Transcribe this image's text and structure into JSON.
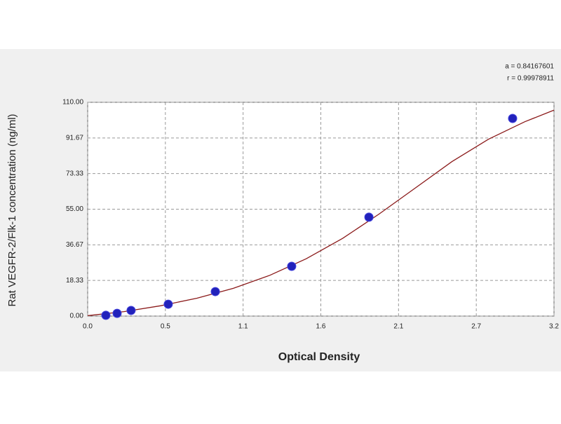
{
  "chart_data": {
    "type": "scatter",
    "ylabel": "Rat VEGFR-2/Flk-1 concentration (ng/ml)",
    "xlabel": "Optical Density",
    "annotations": [
      "a = 0.84167601",
      "r = 0.99978911"
    ],
    "xlim": [
      0,
      3.2
    ],
    "ylim": [
      0,
      110
    ],
    "xticks": [
      {
        "value": 0,
        "label": "0.0"
      },
      {
        "value": 0.5333,
        "label": "0.5"
      },
      {
        "value": 1.0667,
        "label": "1.1"
      },
      {
        "value": 1.6,
        "label": "1.6"
      },
      {
        "value": 2.1333,
        "label": "2.1"
      },
      {
        "value": 2.6667,
        "label": "2.7"
      },
      {
        "value": 3.2,
        "label": "3.2"
      }
    ],
    "yticks": [
      {
        "value": 0,
        "label": "0.00"
      },
      {
        "value": 18.333,
        "label": "18.33"
      },
      {
        "value": 36.667,
        "label": "36.67"
      },
      {
        "value": 55,
        "label": "55.00"
      },
      {
        "value": 73.333,
        "label": "73.33"
      },
      {
        "value": 91.667,
        "label": "91.67"
      },
      {
        "value": 110,
        "label": "110.00"
      }
    ],
    "grid": true,
    "series": [
      {
        "color": "#2222bb",
        "x": [
          0.125,
          0.202,
          0.298,
          0.553,
          0.876,
          1.4,
          1.93,
          2.916
        ],
        "values": [
          0.4,
          1.4,
          2.9,
          6.1,
          12.6,
          25.6,
          50.9,
          101.7
        ]
      },
      {
        "kind": "line",
        "color": "#8b1a1a",
        "x": [
          0,
          0.25,
          0.5,
          0.75,
          1.0,
          1.25,
          1.5,
          1.75,
          2.0,
          2.25,
          2.5,
          2.75,
          3.0,
          3.2
        ],
        "values": [
          0.2,
          2.3,
          5.3,
          9.2,
          14.3,
          21,
          29.5,
          40,
          52.5,
          66,
          79.5,
          91,
          100,
          106
        ]
      }
    ]
  }
}
